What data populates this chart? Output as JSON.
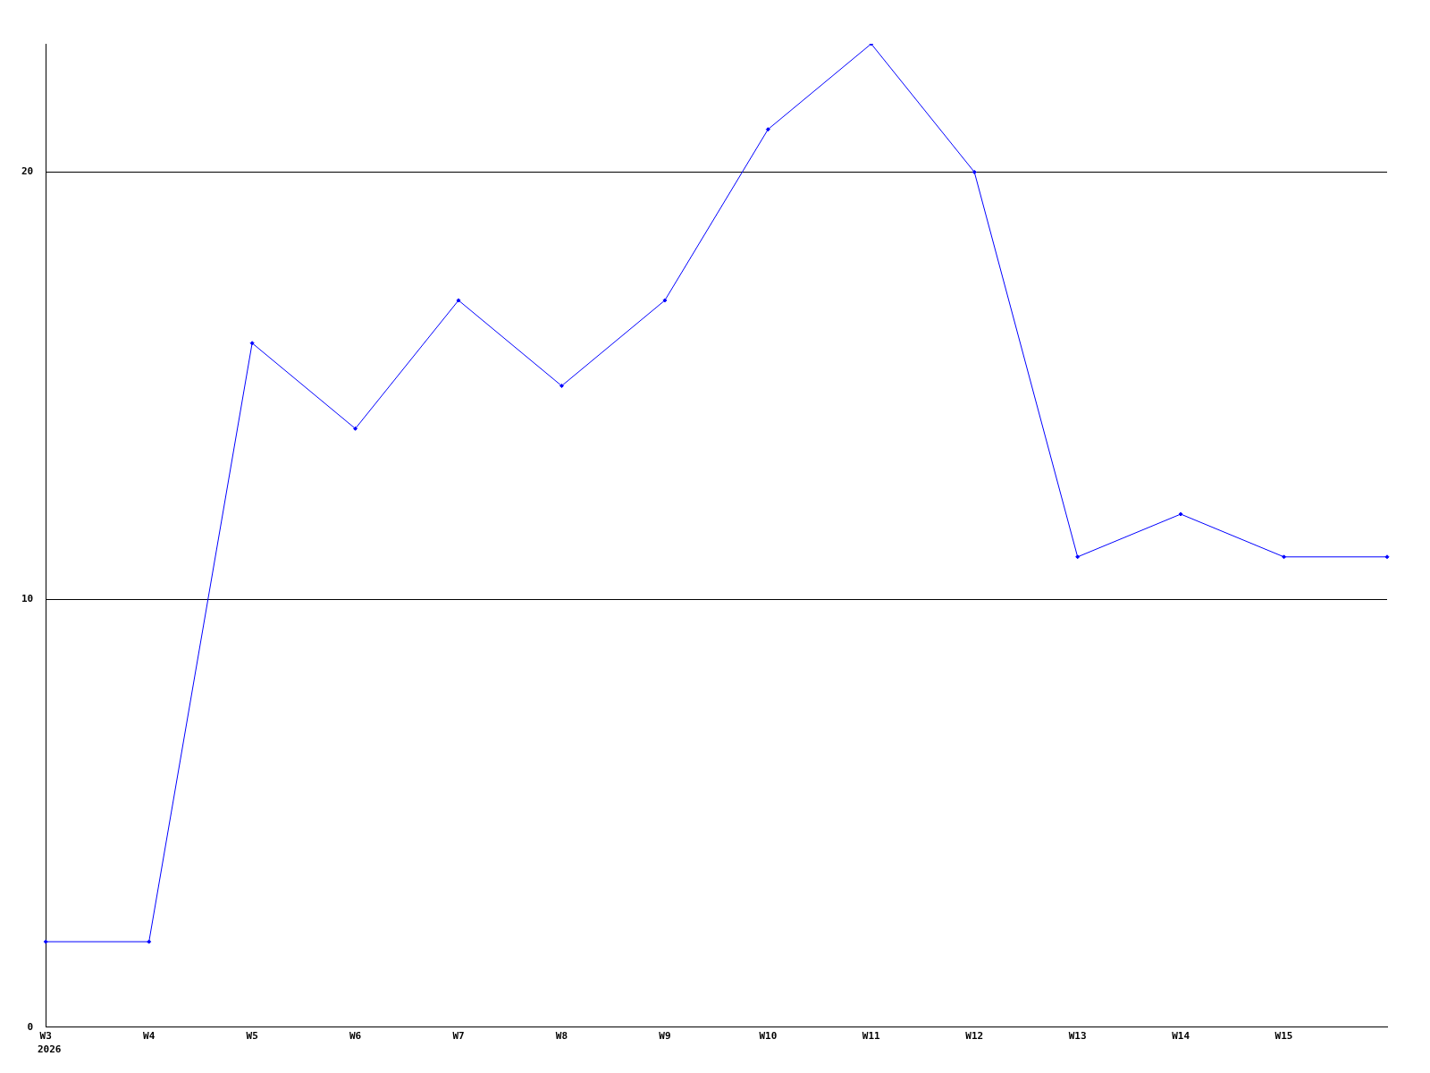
{
  "chart_data": {
    "type": "line",
    "categories": [
      "W3",
      "W4",
      "W5",
      "W6",
      "W7",
      "W8",
      "W9",
      "W10",
      "W11",
      "W12",
      "W13",
      "W14",
      "W15",
      null
    ],
    "series": [
      {
        "color": "#0000ff",
        "values": [
          2,
          2,
          16,
          14,
          17,
          15,
          17,
          21,
          23,
          20,
          11,
          12,
          11,
          11
        ]
      }
    ],
    "ylim": [
      0,
      23
    ],
    "yticks": [
      0,
      10,
      20
    ],
    "grid": "y",
    "legend": false,
    "marker": "diamond",
    "line_style": "solid",
    "annotations": [
      "2026"
    ]
  }
}
